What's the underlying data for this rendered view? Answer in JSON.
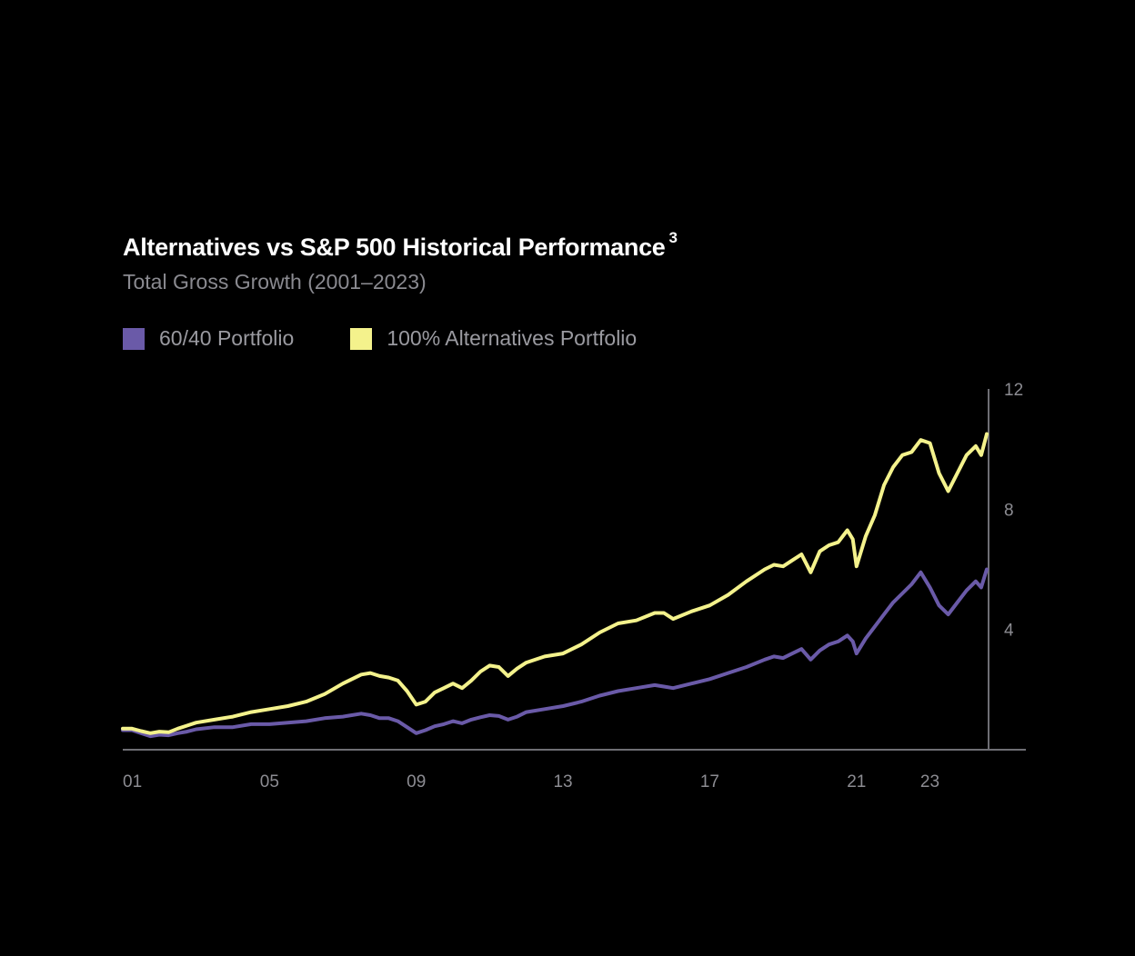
{
  "title": "Alternatives vs S&P 500 Historical Performance",
  "title_superscript": "3",
  "subtitle": "Total Gross Growth (2001–2023)",
  "legend": [
    {
      "label": "60/40 Portfolio",
      "color": "#6a5aa8"
    },
    {
      "label": "100% Alternatives Portfolio",
      "color": "#f4f28c"
    }
  ],
  "chart_data": {
    "type": "line",
    "title": "Alternatives vs S&P 500 Historical Performance",
    "subtitle": "Total Gross Growth (2001–2023)",
    "xlabel": "",
    "ylabel": "",
    "xlim": [
      2001,
      2024.6
    ],
    "ylim": [
      0,
      12
    ],
    "x_ticks": [
      2001,
      2005,
      2009,
      2013,
      2017,
      2021,
      2023
    ],
    "x_tick_labels": [
      "01",
      "05",
      "09",
      "13",
      "17",
      "21",
      "23"
    ],
    "y_ticks": [
      4,
      8,
      12
    ],
    "y_tick_labels": [
      "4",
      "8",
      "12"
    ],
    "y_axis_side": "right",
    "legend_position": "top-left",
    "grid": false,
    "series": [
      {
        "name": "60/40 Portfolio",
        "color": "#6a5aa8",
        "points": [
          [
            2001.0,
            0.65
          ],
          [
            2001.25,
            0.65
          ],
          [
            2001.5,
            0.55
          ],
          [
            2001.75,
            0.45
          ],
          [
            2002.0,
            0.5
          ],
          [
            2002.25,
            0.48
          ],
          [
            2002.5,
            0.55
          ],
          [
            2002.75,
            0.6
          ],
          [
            2003.0,
            0.68
          ],
          [
            2003.5,
            0.75
          ],
          [
            2004.0,
            0.75
          ],
          [
            2004.5,
            0.85
          ],
          [
            2005.0,
            0.85
          ],
          [
            2005.5,
            0.9
          ],
          [
            2006.0,
            0.95
          ],
          [
            2006.5,
            1.05
          ],
          [
            2007.0,
            1.1
          ],
          [
            2007.5,
            1.2
          ],
          [
            2007.75,
            1.15
          ],
          [
            2008.0,
            1.05
          ],
          [
            2008.25,
            1.05
          ],
          [
            2008.5,
            0.95
          ],
          [
            2008.75,
            0.75
          ],
          [
            2009.0,
            0.55
          ],
          [
            2009.25,
            0.65
          ],
          [
            2009.5,
            0.78
          ],
          [
            2009.75,
            0.85
          ],
          [
            2010.0,
            0.95
          ],
          [
            2010.25,
            0.88
          ],
          [
            2010.5,
            1.0
          ],
          [
            2010.75,
            1.08
          ],
          [
            2011.0,
            1.15
          ],
          [
            2011.25,
            1.12
          ],
          [
            2011.5,
            1.0
          ],
          [
            2011.75,
            1.1
          ],
          [
            2012.0,
            1.25
          ],
          [
            2012.5,
            1.35
          ],
          [
            2013.0,
            1.45
          ],
          [
            2013.5,
            1.6
          ],
          [
            2014.0,
            1.8
          ],
          [
            2014.5,
            1.95
          ],
          [
            2015.0,
            2.05
          ],
          [
            2015.5,
            2.15
          ],
          [
            2015.75,
            2.1
          ],
          [
            2016.0,
            2.05
          ],
          [
            2016.5,
            2.2
          ],
          [
            2017.0,
            2.35
          ],
          [
            2017.5,
            2.55
          ],
          [
            2018.0,
            2.75
          ],
          [
            2018.5,
            3.0
          ],
          [
            2018.75,
            3.1
          ],
          [
            2019.0,
            3.05
          ],
          [
            2019.25,
            3.2
          ],
          [
            2019.5,
            3.35
          ],
          [
            2019.75,
            3.0
          ],
          [
            2020.0,
            3.3
          ],
          [
            2020.25,
            3.5
          ],
          [
            2020.5,
            3.6
          ],
          [
            2020.75,
            3.8
          ],
          [
            2020.9,
            3.6
          ],
          [
            2021.0,
            3.2
          ],
          [
            2021.25,
            3.7
          ],
          [
            2021.5,
            4.1
          ],
          [
            2021.75,
            4.5
          ],
          [
            2022.0,
            4.9
          ],
          [
            2022.25,
            5.2
          ],
          [
            2022.5,
            5.5
          ],
          [
            2022.75,
            5.9
          ],
          [
            2023.0,
            5.4
          ],
          [
            2023.25,
            4.8
          ],
          [
            2023.5,
            4.5
          ],
          [
            2023.75,
            4.9
          ],
          [
            2024.0,
            5.3
          ],
          [
            2024.25,
            5.6
          ],
          [
            2024.4,
            5.4
          ],
          [
            2024.55,
            6.0
          ]
        ]
      },
      {
        "name": "100% Alternatives Portfolio",
        "color": "#f4f28c",
        "points": [
          [
            2001.0,
            0.7
          ],
          [
            2001.25,
            0.7
          ],
          [
            2001.5,
            0.62
          ],
          [
            2001.75,
            0.55
          ],
          [
            2002.0,
            0.6
          ],
          [
            2002.25,
            0.58
          ],
          [
            2002.5,
            0.7
          ],
          [
            2002.75,
            0.8
          ],
          [
            2003.0,
            0.9
          ],
          [
            2003.5,
            1.0
          ],
          [
            2004.0,
            1.1
          ],
          [
            2004.5,
            1.25
          ],
          [
            2005.0,
            1.35
          ],
          [
            2005.5,
            1.45
          ],
          [
            2006.0,
            1.6
          ],
          [
            2006.5,
            1.85
          ],
          [
            2007.0,
            2.2
          ],
          [
            2007.5,
            2.5
          ],
          [
            2007.75,
            2.55
          ],
          [
            2008.0,
            2.45
          ],
          [
            2008.25,
            2.4
          ],
          [
            2008.5,
            2.3
          ],
          [
            2008.75,
            1.95
          ],
          [
            2009.0,
            1.5
          ],
          [
            2009.25,
            1.6
          ],
          [
            2009.5,
            1.9
          ],
          [
            2009.75,
            2.05
          ],
          [
            2010.0,
            2.2
          ],
          [
            2010.25,
            2.05
          ],
          [
            2010.5,
            2.3
          ],
          [
            2010.75,
            2.6
          ],
          [
            2011.0,
            2.8
          ],
          [
            2011.25,
            2.75
          ],
          [
            2011.5,
            2.45
          ],
          [
            2011.75,
            2.7
          ],
          [
            2012.0,
            2.9
          ],
          [
            2012.5,
            3.1
          ],
          [
            2013.0,
            3.2
          ],
          [
            2013.5,
            3.5
          ],
          [
            2014.0,
            3.9
          ],
          [
            2014.5,
            4.2
          ],
          [
            2015.0,
            4.3
          ],
          [
            2015.5,
            4.55
          ],
          [
            2015.75,
            4.55
          ],
          [
            2016.0,
            4.35
          ],
          [
            2016.5,
            4.6
          ],
          [
            2017.0,
            4.8
          ],
          [
            2017.5,
            5.15
          ],
          [
            2018.0,
            5.6
          ],
          [
            2018.5,
            6.0
          ],
          [
            2018.75,
            6.15
          ],
          [
            2019.0,
            6.1
          ],
          [
            2019.25,
            6.3
          ],
          [
            2019.5,
            6.5
          ],
          [
            2019.75,
            5.9
          ],
          [
            2020.0,
            6.6
          ],
          [
            2020.25,
            6.8
          ],
          [
            2020.5,
            6.9
          ],
          [
            2020.75,
            7.3
          ],
          [
            2020.9,
            7.0
          ],
          [
            2021.0,
            6.1
          ],
          [
            2021.25,
            7.1
          ],
          [
            2021.5,
            7.8
          ],
          [
            2021.75,
            8.8
          ],
          [
            2022.0,
            9.4
          ],
          [
            2022.25,
            9.8
          ],
          [
            2022.5,
            9.9
          ],
          [
            2022.75,
            10.3
          ],
          [
            2023.0,
            10.2
          ],
          [
            2023.25,
            9.2
          ],
          [
            2023.5,
            8.6
          ],
          [
            2023.75,
            9.2
          ],
          [
            2024.0,
            9.8
          ],
          [
            2024.25,
            10.1
          ],
          [
            2024.4,
            9.8
          ],
          [
            2024.55,
            10.5
          ]
        ]
      }
    ]
  }
}
